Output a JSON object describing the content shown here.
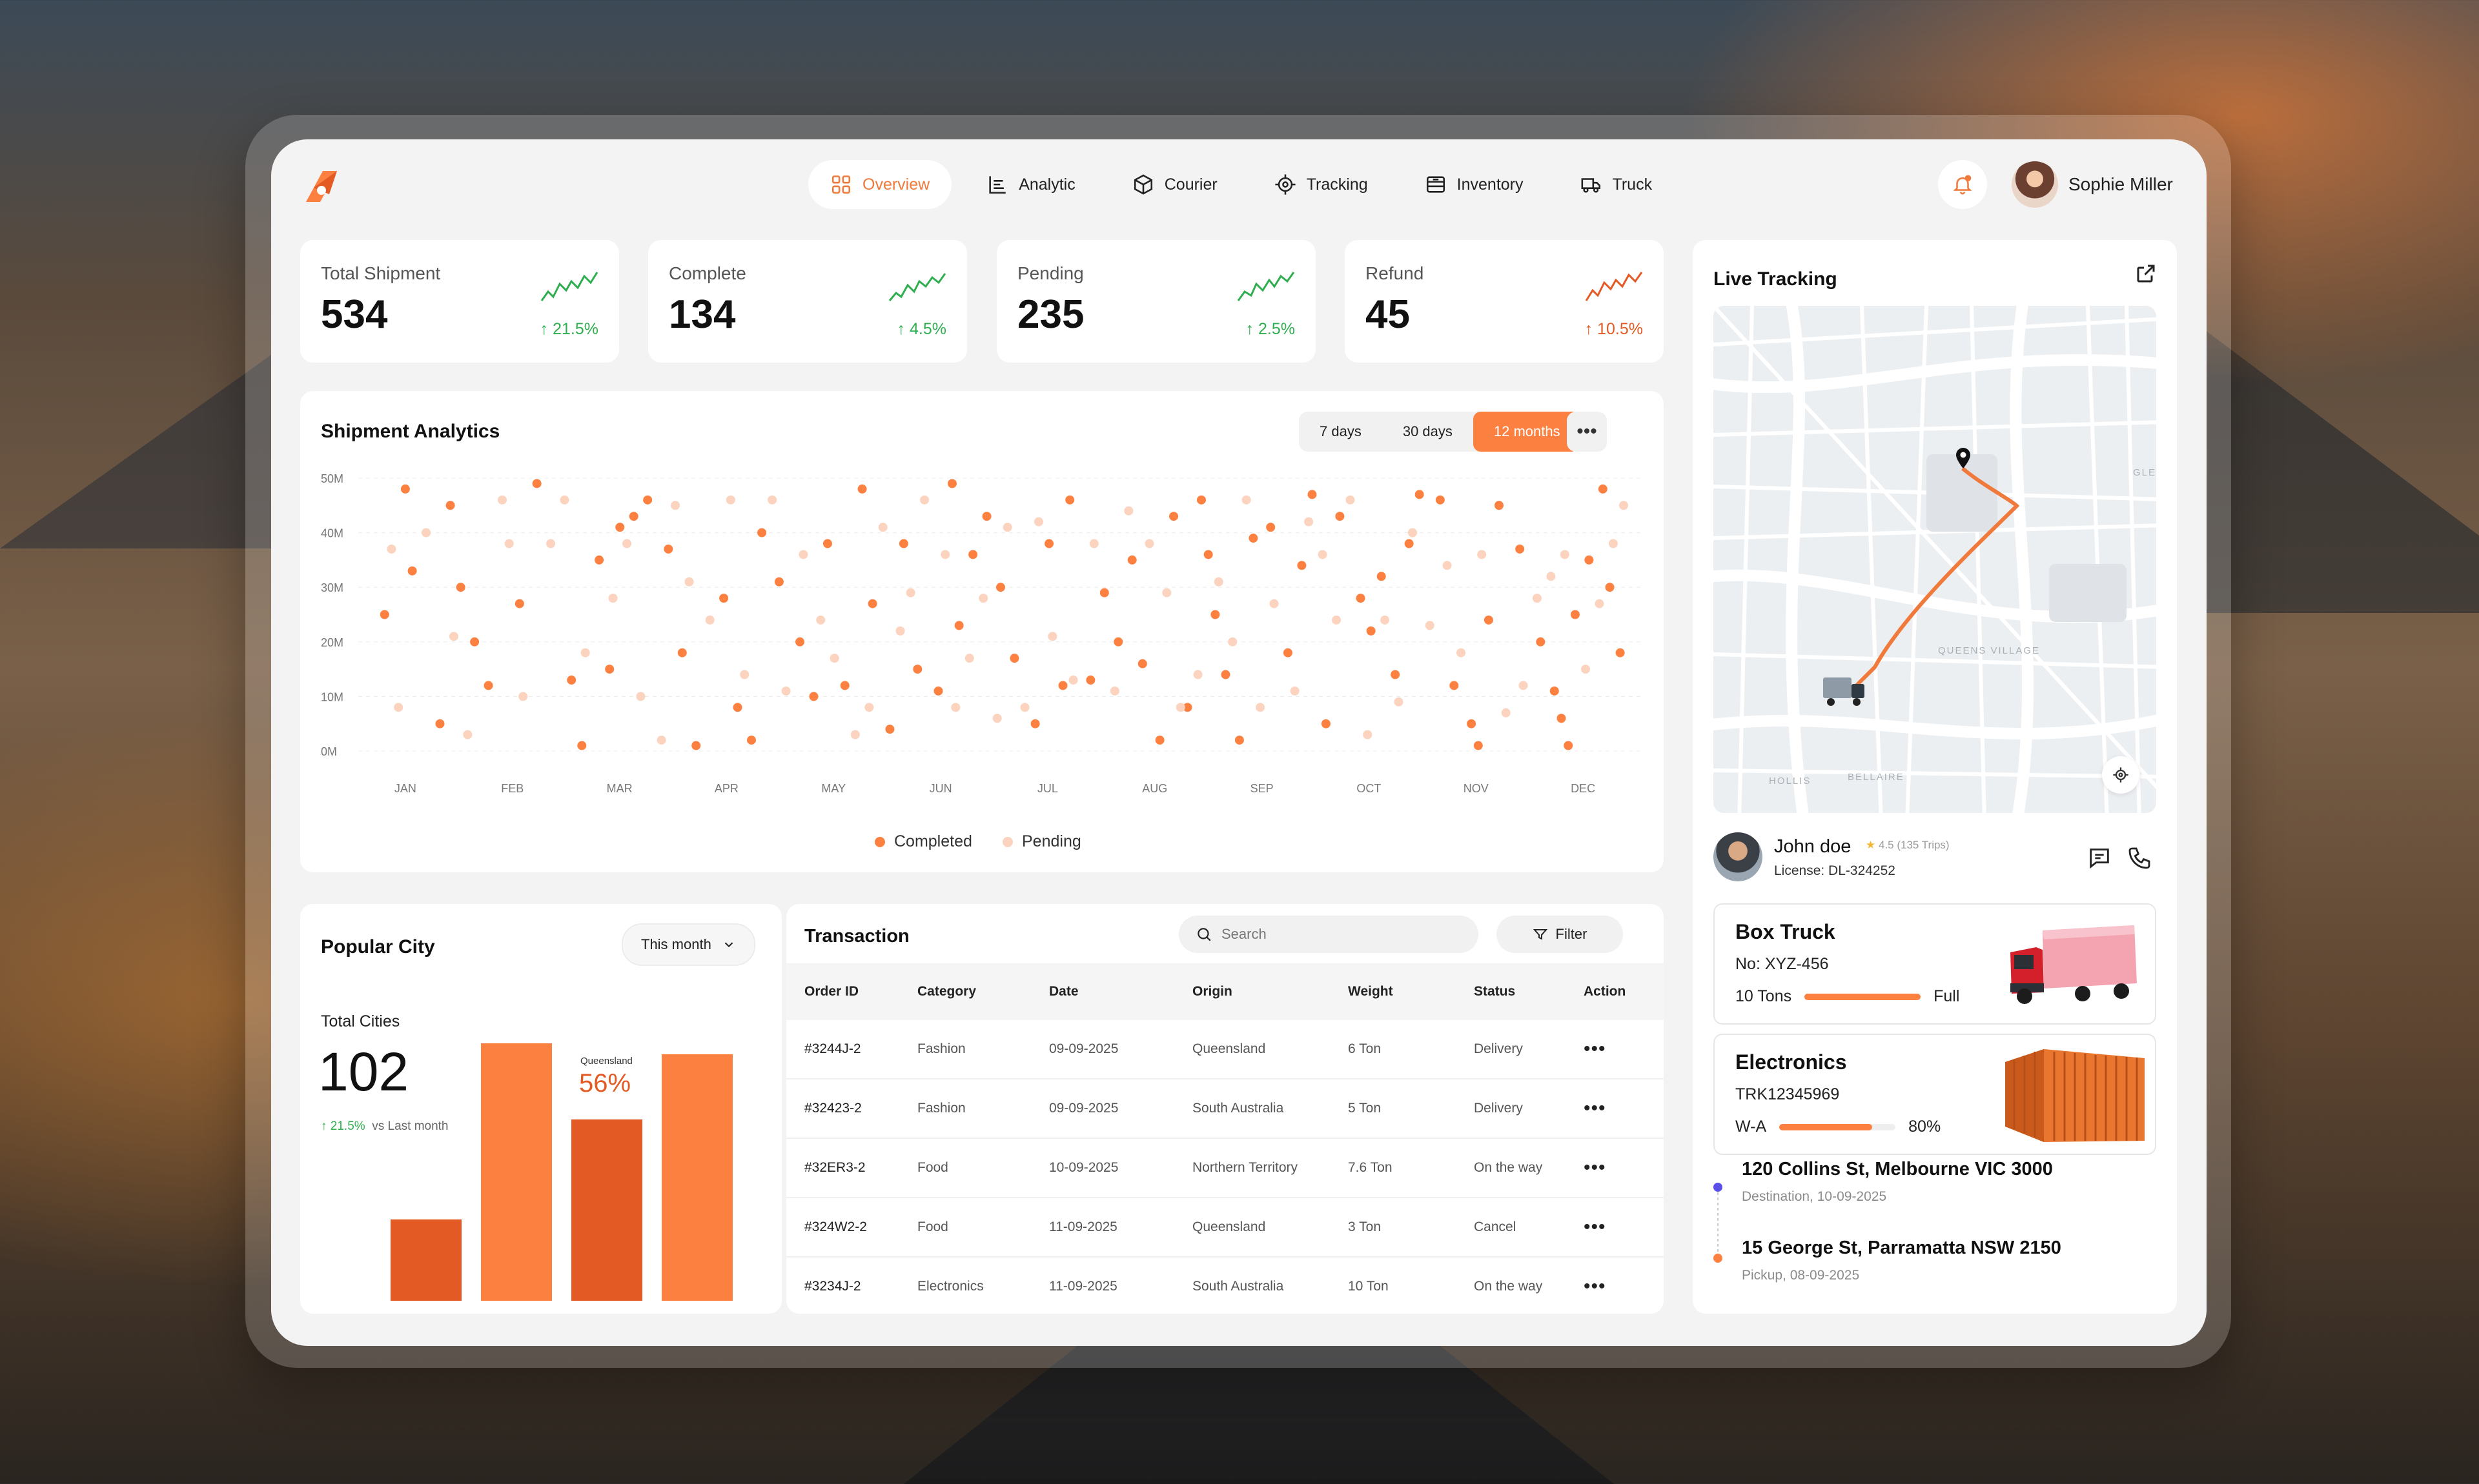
{
  "brand": {
    "accent": "#FC8140",
    "accent_dark": "#E35A24",
    "success": "#2FAE4F",
    "danger": "#E52D2D"
  },
  "nav": {
    "items": [
      {
        "label": "Overview",
        "icon": "grid-icon",
        "active": true
      },
      {
        "label": "Analytic",
        "icon": "chart-icon"
      },
      {
        "label": "Courier",
        "icon": "box-icon"
      },
      {
        "label": "Tracking",
        "icon": "target-icon"
      },
      {
        "label": "Inventory",
        "icon": "archive-icon"
      },
      {
        "label": "Truck",
        "icon": "truck-icon"
      }
    ]
  },
  "user": {
    "name": "Sophie Miller"
  },
  "kpis": [
    {
      "label": "Total Shipment",
      "value": "534",
      "delta": "21.5%",
      "trend": "up",
      "color": "#2FAE4F"
    },
    {
      "label": "Complete",
      "value": "134",
      "delta": "4.5%",
      "trend": "up",
      "color": "#2FAE4F"
    },
    {
      "label": "Pending",
      "value": "235",
      "delta": "2.5%",
      "trend": "up",
      "color": "#2FAE4F"
    },
    {
      "label": "Refund",
      "value": "45",
      "delta": "10.5%",
      "trend": "up",
      "color": "#E35A24"
    }
  ],
  "analytics": {
    "title": "Shipment Analytics",
    "ranges": [
      "7 days",
      "30 days",
      "12 months"
    ],
    "active_range": "12 months"
  },
  "chart_data": {
    "type": "scatter",
    "title": "Shipment Analytics",
    "x_labels": [
      "JAN",
      "FEB",
      "MAR",
      "APR",
      "MAY",
      "JUN",
      "JUL",
      "AUG",
      "SEP",
      "OCT",
      "NOV",
      "DEC"
    ],
    "y_tick_labels": [
      "0M",
      "10M",
      "20M",
      "30M",
      "40M",
      "50M"
    ],
    "ylim": [
      0,
      50
    ],
    "grid": true,
    "legend": "bottom",
    "series": [
      {
        "name": "Completed",
        "color": "#FC8140",
        "points": [
          [
            0.1,
            25
          ],
          [
            0.4,
            48
          ],
          [
            0.5,
            33
          ],
          [
            0.9,
            5
          ],
          [
            1.05,
            45
          ],
          [
            1.2,
            30
          ],
          [
            1.4,
            20
          ],
          [
            1.6,
            12
          ],
          [
            2.05,
            27
          ],
          [
            2.3,
            49
          ],
          [
            2.8,
            13
          ],
          [
            2.95,
            1
          ],
          [
            3.2,
            35
          ],
          [
            3.35,
            15
          ],
          [
            3.5,
            41
          ],
          [
            3.7,
            43
          ],
          [
            3.9,
            46
          ],
          [
            4.2,
            37
          ],
          [
            4.4,
            18
          ],
          [
            4.6,
            1
          ],
          [
            5.0,
            28
          ],
          [
            5.2,
            8
          ],
          [
            5.4,
            2
          ],
          [
            5.55,
            40
          ],
          [
            5.8,
            31
          ],
          [
            6.1,
            20
          ],
          [
            6.3,
            10
          ],
          [
            6.5,
            38
          ],
          [
            6.75,
            12
          ],
          [
            7.0,
            48
          ],
          [
            7.15,
            27
          ],
          [
            7.4,
            4
          ],
          [
            7.6,
            38
          ],
          [
            7.8,
            15
          ],
          [
            8.1,
            11
          ],
          [
            8.3,
            49
          ],
          [
            8.4,
            23
          ],
          [
            8.6,
            36
          ],
          [
            8.8,
            43
          ],
          [
            9.0,
            30
          ],
          [
            9.2,
            17
          ],
          [
            9.5,
            5
          ],
          [
            9.7,
            38
          ],
          [
            9.9,
            12
          ],
          [
            10.0,
            46
          ],
          [
            10.3,
            13
          ],
          [
            10.5,
            29
          ],
          [
            10.7,
            20
          ],
          [
            10.9,
            35
          ],
          [
            11.05,
            16
          ],
          [
            11.3,
            2
          ],
          [
            11.5,
            43
          ],
          [
            11.7,
            8
          ],
          [
            11.9,
            46
          ],
          [
            12.0,
            36
          ],
          [
            12.1,
            25
          ],
          [
            12.25,
            14
          ],
          [
            12.45,
            2
          ],
          [
            12.65,
            39
          ],
          [
            12.9,
            41
          ],
          [
            13.15,
            18
          ],
          [
            13.35,
            34
          ],
          [
            13.5,
            47
          ],
          [
            13.7,
            5
          ],
          [
            13.9,
            43
          ],
          [
            14.2,
            28
          ],
          [
            14.35,
            22
          ],
          [
            14.5,
            32
          ],
          [
            14.7,
            14
          ],
          [
            14.9,
            38
          ],
          [
            15.05,
            47
          ],
          [
            15.35,
            46
          ],
          [
            15.55,
            12
          ],
          [
            15.8,
            5
          ],
          [
            15.9,
            1
          ],
          [
            16.05,
            24
          ],
          [
            16.2,
            45
          ],
          [
            16.5,
            37
          ],
          [
            16.8,
            20
          ],
          [
            17.0,
            11
          ],
          [
            17.1,
            6
          ],
          [
            17.2,
            1
          ],
          [
            17.3,
            25
          ],
          [
            17.5,
            35
          ],
          [
            17.7,
            48
          ],
          [
            17.8,
            30
          ],
          [
            17.95,
            18
          ]
        ]
      },
      {
        "name": "Pending",
        "color": "#FBD3BE",
        "points": [
          [
            0.2,
            37
          ],
          [
            0.3,
            8
          ],
          [
            0.7,
            40
          ],
          [
            1.1,
            21
          ],
          [
            1.3,
            3
          ],
          [
            1.8,
            46
          ],
          [
            1.9,
            38
          ],
          [
            2.1,
            10
          ],
          [
            2.5,
            38
          ],
          [
            2.7,
            46
          ],
          [
            3.0,
            18
          ],
          [
            3.4,
            28
          ],
          [
            3.6,
            38
          ],
          [
            3.8,
            10
          ],
          [
            4.1,
            2
          ],
          [
            4.3,
            45
          ],
          [
            4.5,
            31
          ],
          [
            4.8,
            24
          ],
          [
            5.1,
            46
          ],
          [
            5.3,
            14
          ],
          [
            5.7,
            46
          ],
          [
            5.9,
            11
          ],
          [
            6.15,
            36
          ],
          [
            6.4,
            24
          ],
          [
            6.6,
            17
          ],
          [
            6.9,
            3
          ],
          [
            7.1,
            8
          ],
          [
            7.3,
            41
          ],
          [
            7.55,
            22
          ],
          [
            7.7,
            29
          ],
          [
            7.9,
            46
          ],
          [
            8.2,
            36
          ],
          [
            8.35,
            8
          ],
          [
            8.55,
            17
          ],
          [
            8.75,
            28
          ],
          [
            8.95,
            6
          ],
          [
            9.1,
            41
          ],
          [
            9.35,
            8
          ],
          [
            9.55,
            42
          ],
          [
            9.75,
            21
          ],
          [
            10.05,
            13
          ],
          [
            10.35,
            38
          ],
          [
            10.65,
            11
          ],
          [
            10.85,
            44
          ],
          [
            11.15,
            38
          ],
          [
            11.4,
            29
          ],
          [
            11.6,
            8
          ],
          [
            11.85,
            14
          ],
          [
            12.15,
            31
          ],
          [
            12.35,
            20
          ],
          [
            12.55,
            46
          ],
          [
            12.75,
            8
          ],
          [
            12.95,
            27
          ],
          [
            13.25,
            11
          ],
          [
            13.45,
            42
          ],
          [
            13.65,
            36
          ],
          [
            13.85,
            24
          ],
          [
            14.05,
            46
          ],
          [
            14.3,
            3
          ],
          [
            14.55,
            24
          ],
          [
            14.75,
            9
          ],
          [
            14.95,
            40
          ],
          [
            15.2,
            23
          ],
          [
            15.45,
            34
          ],
          [
            15.65,
            18
          ],
          [
            15.95,
            36
          ],
          [
            16.3,
            7
          ],
          [
            16.55,
            12
          ],
          [
            16.75,
            28
          ],
          [
            16.95,
            32
          ],
          [
            17.15,
            36
          ],
          [
            17.45,
            15
          ],
          [
            17.65,
            27
          ],
          [
            17.85,
            38
          ],
          [
            18.0,
            45
          ]
        ]
      }
    ]
  },
  "popular_city": {
    "title": "Popular City",
    "filter": "This month",
    "total_label": "Total Cities",
    "total": "102",
    "delta": "21.5%",
    "delta_suffix": "vs Last  month",
    "highlight_label": "Queensland",
    "highlight_value": "56%"
  },
  "city_chart": {
    "type": "bar",
    "values": [
      30,
      95,
      67,
      91
    ],
    "highlight_index": 2
  },
  "transactions": {
    "title": "Transaction",
    "search_placeholder": "Search",
    "filter_label": "Filter",
    "columns": [
      "Order ID",
      "Category",
      "Date",
      "Origin",
      "Weight",
      "Status",
      "Action"
    ],
    "rows": [
      {
        "id": "#3244J-2",
        "category": "Fashion",
        "date": "09-09-2025",
        "origin": "Queensland",
        "weight": "6 Ton",
        "status": "Delivery",
        "status_type": "delivery"
      },
      {
        "id": "#32423-2",
        "category": "Fashion",
        "date": "09-09-2025",
        "origin": "South Australia",
        "weight": "5 Ton",
        "status": "Delivery",
        "status_type": "delivery"
      },
      {
        "id": "#32ER3-2",
        "category": "Food",
        "date": "10-09-2025",
        "origin": "Northern Territory",
        "weight": "7.6 Ton",
        "status": "On the way",
        "status_type": "way"
      },
      {
        "id": "#324W2-2",
        "category": "Food",
        "date": "11-09-2025",
        "origin": "Queensland",
        "weight": "3 Ton",
        "status": "Cancel",
        "status_type": "cancel"
      },
      {
        "id": "#3234J-2",
        "category": "Electronics",
        "date": "11-09-2025",
        "origin": "South Australia",
        "weight": "10 Ton",
        "status": "On the way",
        "status_type": "way"
      }
    ]
  },
  "tracking": {
    "title": "Live Tracking",
    "map_labels": [
      "QUEENS VILLAGE",
      "BELLAIRE",
      "HOLLIS",
      "GLE"
    ],
    "driver": {
      "name": "John doe",
      "rating": "4.5 (135 Trips)",
      "license": "License: DL-324252"
    },
    "vehicle": {
      "title": "Box Truck",
      "number": "No: XYZ-456",
      "capacity": "10 Tons",
      "fill_label": "Full",
      "fill": 1.0
    },
    "cargo": {
      "title": "Electronics",
      "code": "TRK12345969",
      "route_label": "W-A",
      "progress_label": "80%",
      "progress": 0.8
    },
    "stops": [
      {
        "address": "120 Collins St, Melbourne VIC 3000",
        "meta": "Destination, 10-09-2025",
        "color": "#5B4FE9"
      },
      {
        "address": "15 George St, Parramatta NSW 2150",
        "meta": "Pickup, 08-09-2025",
        "color": "#FC8140"
      }
    ]
  }
}
